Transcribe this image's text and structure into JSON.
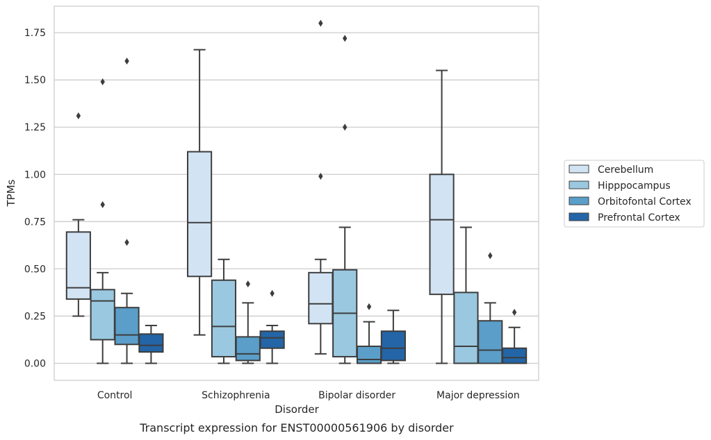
{
  "caption": "Transcript expression for ENST00000561906 by disorder",
  "colors": {
    "box_edge": "#3d3d3d",
    "grid": "#cccccc",
    "frame": "#cccccc",
    "text": "#262626"
  },
  "chart_data": {
    "type": "box",
    "title": "",
    "xlabel": "Disorder",
    "ylabel": "TPMs",
    "ylim": [
      -0.09,
      1.89
    ],
    "yticks": [
      "0.00",
      "0.25",
      "0.50",
      "0.75",
      "1.00",
      "1.25",
      "1.50",
      "1.75"
    ],
    "grid": "horizontal",
    "legend_position": "outside-right",
    "categories": [
      "Control",
      "Schizophrenia",
      "Bipolar disorder",
      "Major depression"
    ],
    "series": [
      {
        "name": "Cerebellum",
        "color": "#d2e3f3",
        "boxes": [
          {
            "whisker_low": 0.25,
            "q1": 0.34,
            "median": 0.4,
            "q3": 0.695,
            "whisker_high": 0.76,
            "outliers": [
              1.31
            ]
          },
          {
            "whisker_low": 0.15,
            "q1": 0.46,
            "median": 0.745,
            "q3": 1.12,
            "whisker_high": 1.66,
            "outliers": []
          },
          {
            "whisker_low": 0.05,
            "q1": 0.21,
            "median": 0.315,
            "q3": 0.48,
            "whisker_high": 0.55,
            "outliers": [
              0.99,
              1.8
            ]
          },
          {
            "whisker_low": 0.0,
            "q1": 0.365,
            "median": 0.76,
            "q3": 1.0,
            "whisker_high": 1.55,
            "outliers": []
          }
        ]
      },
      {
        "name": "Hipppocampus",
        "color": "#9ac8e0",
        "boxes": [
          {
            "whisker_low": 0.0,
            "q1": 0.125,
            "median": 0.33,
            "q3": 0.39,
            "whisker_high": 0.48,
            "outliers": [
              0.84,
              1.49
            ]
          },
          {
            "whisker_low": 0.0,
            "q1": 0.035,
            "median": 0.195,
            "q3": 0.44,
            "whisker_high": 0.55,
            "outliers": []
          },
          {
            "whisker_low": 0.0,
            "q1": 0.035,
            "median": 0.265,
            "q3": 0.495,
            "whisker_high": 0.72,
            "outliers": [
              1.25,
              1.72
            ]
          },
          {
            "whisker_low": 0.0,
            "q1": 0.0,
            "median": 0.09,
            "q3": 0.375,
            "whisker_high": 0.72,
            "outliers": []
          }
        ]
      },
      {
        "name": "Orbitofontal Cortex",
        "color": "#5a9ec9",
        "boxes": [
          {
            "whisker_low": 0.0,
            "q1": 0.1,
            "median": 0.15,
            "q3": 0.295,
            "whisker_high": 0.37,
            "outliers": [
              0.64,
              1.6
            ]
          },
          {
            "whisker_low": 0.0,
            "q1": 0.015,
            "median": 0.05,
            "q3": 0.14,
            "whisker_high": 0.32,
            "outliers": [
              0.42
            ]
          },
          {
            "whisker_low": 0.0,
            "q1": 0.0,
            "median": 0.02,
            "q3": 0.09,
            "whisker_high": 0.22,
            "outliers": [
              0.3
            ]
          },
          {
            "whisker_low": 0.0,
            "q1": 0.0,
            "median": 0.07,
            "q3": 0.225,
            "whisker_high": 0.32,
            "outliers": [
              0.57
            ]
          }
        ]
      },
      {
        "name": "Prefrontal Cortex",
        "color": "#2465a7",
        "boxes": [
          {
            "whisker_low": 0.0,
            "q1": 0.06,
            "median": 0.095,
            "q3": 0.155,
            "whisker_high": 0.2,
            "outliers": []
          },
          {
            "whisker_low": 0.0,
            "q1": 0.08,
            "median": 0.135,
            "q3": 0.17,
            "whisker_high": 0.2,
            "outliers": [
              0.37
            ]
          },
          {
            "whisker_low": 0.0,
            "q1": 0.015,
            "median": 0.08,
            "q3": 0.17,
            "whisker_high": 0.28,
            "outliers": []
          },
          {
            "whisker_low": 0.0,
            "q1": 0.0,
            "median": 0.03,
            "q3": 0.08,
            "whisker_high": 0.19,
            "outliers": [
              0.27
            ]
          }
        ]
      }
    ]
  }
}
